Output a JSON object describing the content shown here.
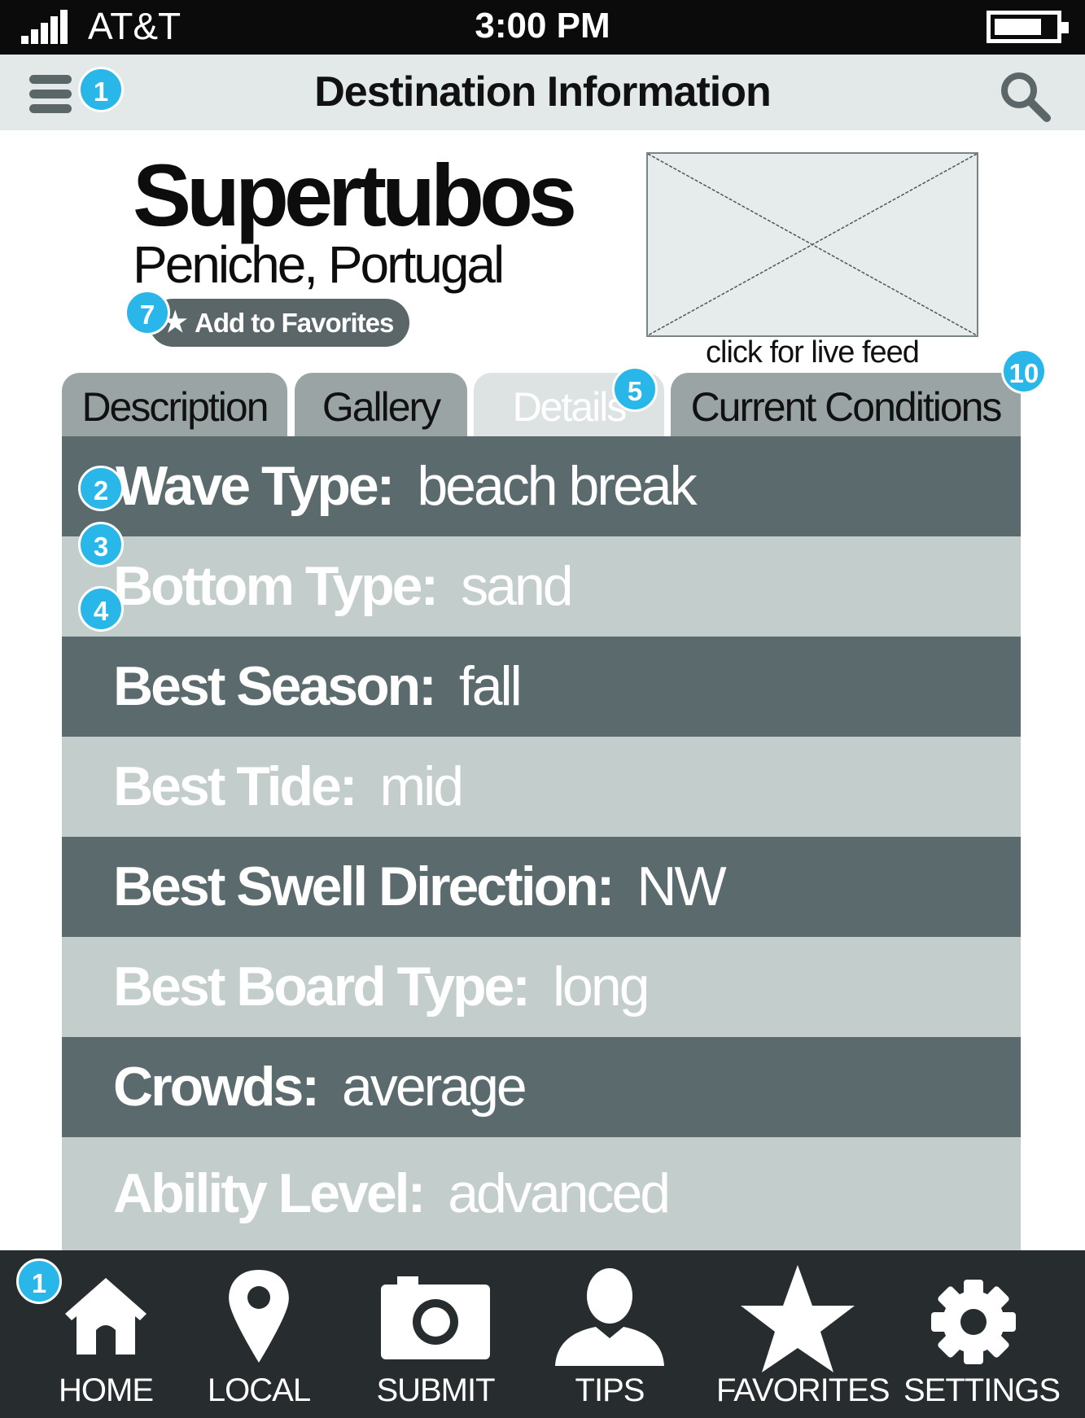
{
  "status_bar": {
    "carrier": "AT&T",
    "time": "3:00 PM"
  },
  "header": {
    "title": "Destination Information",
    "menu_icon": "hamburger-menu-icon",
    "search_icon": "search-icon"
  },
  "annotations": {
    "menu": "1",
    "wave_type": "2",
    "bottom_type": "3",
    "row_four": "4",
    "details_tab": "5",
    "favorites": "7",
    "current_conditions": "10",
    "home": "1"
  },
  "destination": {
    "name": "Supertubos",
    "location": "Peniche, Portugal",
    "favorite_label": "Add to Favorites",
    "live_feed_caption": "click for live feed"
  },
  "tabs": [
    {
      "label": "Description",
      "active": false
    },
    {
      "label": "Gallery",
      "active": false
    },
    {
      "label": "Details",
      "active": true
    },
    {
      "label": "Current Conditions",
      "active": false
    }
  ],
  "details": [
    {
      "label": "Wave Type:",
      "value": "beach break"
    },
    {
      "label": "Bottom Type:",
      "value": "sand"
    },
    {
      "label": "Best Season:",
      "value": "fall"
    },
    {
      "label": "Best Tide:",
      "value": "mid"
    },
    {
      "label": "Best Swell Direction:",
      "value": "NW"
    },
    {
      "label": "Best Board Type:",
      "value": "long"
    },
    {
      "label": "Crowds:",
      "value": "average"
    },
    {
      "label": "Ability Level:",
      "value": "advanced"
    }
  ],
  "nav": [
    {
      "label": "HOME",
      "icon": "home-icon"
    },
    {
      "label": "LOCAL",
      "icon": "location-pin-icon"
    },
    {
      "label": "SUBMIT",
      "icon": "camera-icon"
    },
    {
      "label": "TIPS",
      "icon": "person-icon"
    },
    {
      "label": "FAVORITES",
      "icon": "star-icon"
    },
    {
      "label": "SETTINGS",
      "icon": "gear-icon"
    }
  ],
  "colors": {
    "badge": "#29b6e8",
    "dark_row": "#5a6a6d",
    "light_row": "#c3cdcc",
    "tab_bar": "#272c2e"
  }
}
